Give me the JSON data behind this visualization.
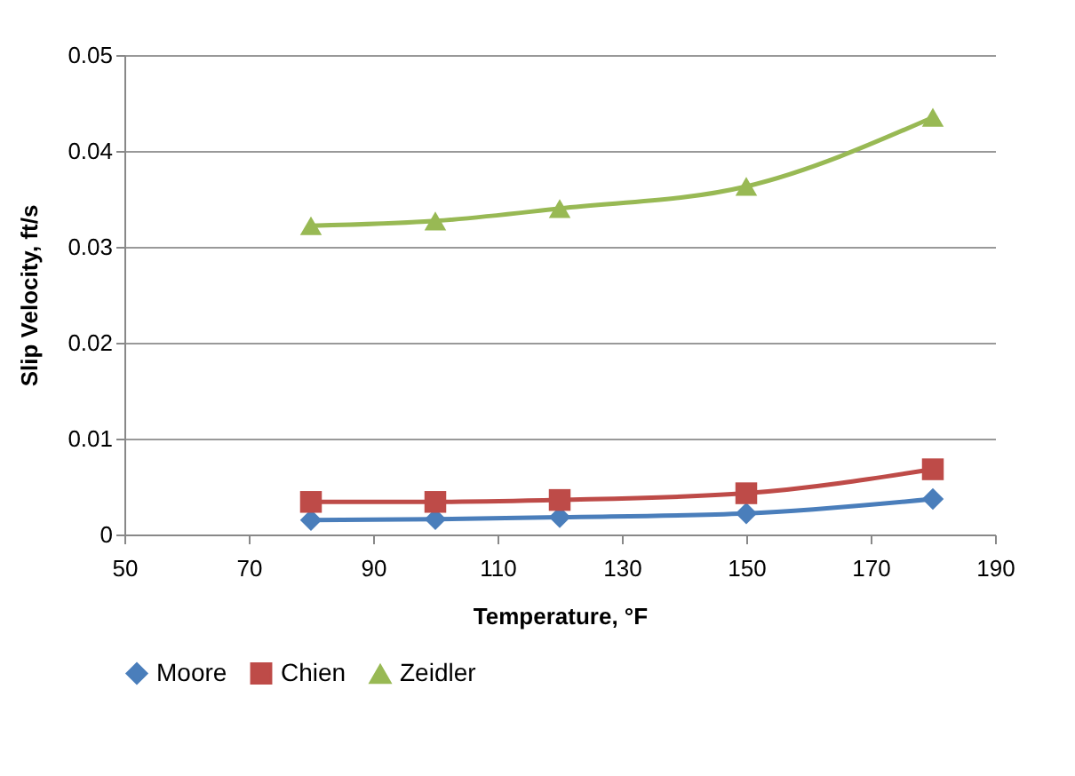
{
  "chart_data": {
    "type": "line",
    "xlabel": "Temperature, °F",
    "ylabel": "Slip Velocity, ft/s",
    "x": [
      80,
      100,
      120,
      150,
      180
    ],
    "series": [
      {
        "name": "Moore",
        "color": "#4a7ebb",
        "marker": "diamond",
        "values": [
          0.0015,
          0.0016,
          0.0018,
          0.0022,
          0.0037
        ]
      },
      {
        "name": "Chien",
        "color": "#be4b48",
        "marker": "square",
        "values": [
          0.0034,
          0.0034,
          0.0036,
          0.0043,
          0.0068
        ]
      },
      {
        "name": "Zeidler",
        "color": "#98b954",
        "marker": "triangle",
        "values": [
          0.0322,
          0.0327,
          0.034,
          0.0363,
          0.0435
        ]
      }
    ],
    "xlim": [
      50,
      190
    ],
    "xticks": [
      50,
      70,
      90,
      110,
      130,
      150,
      170,
      190
    ],
    "ylim": [
      0,
      0.05
    ],
    "yticks": [
      0,
      0.01,
      0.02,
      0.03,
      0.04,
      0.05
    ],
    "grid": "y",
    "legend": "bottom",
    "line_style": "solid"
  }
}
